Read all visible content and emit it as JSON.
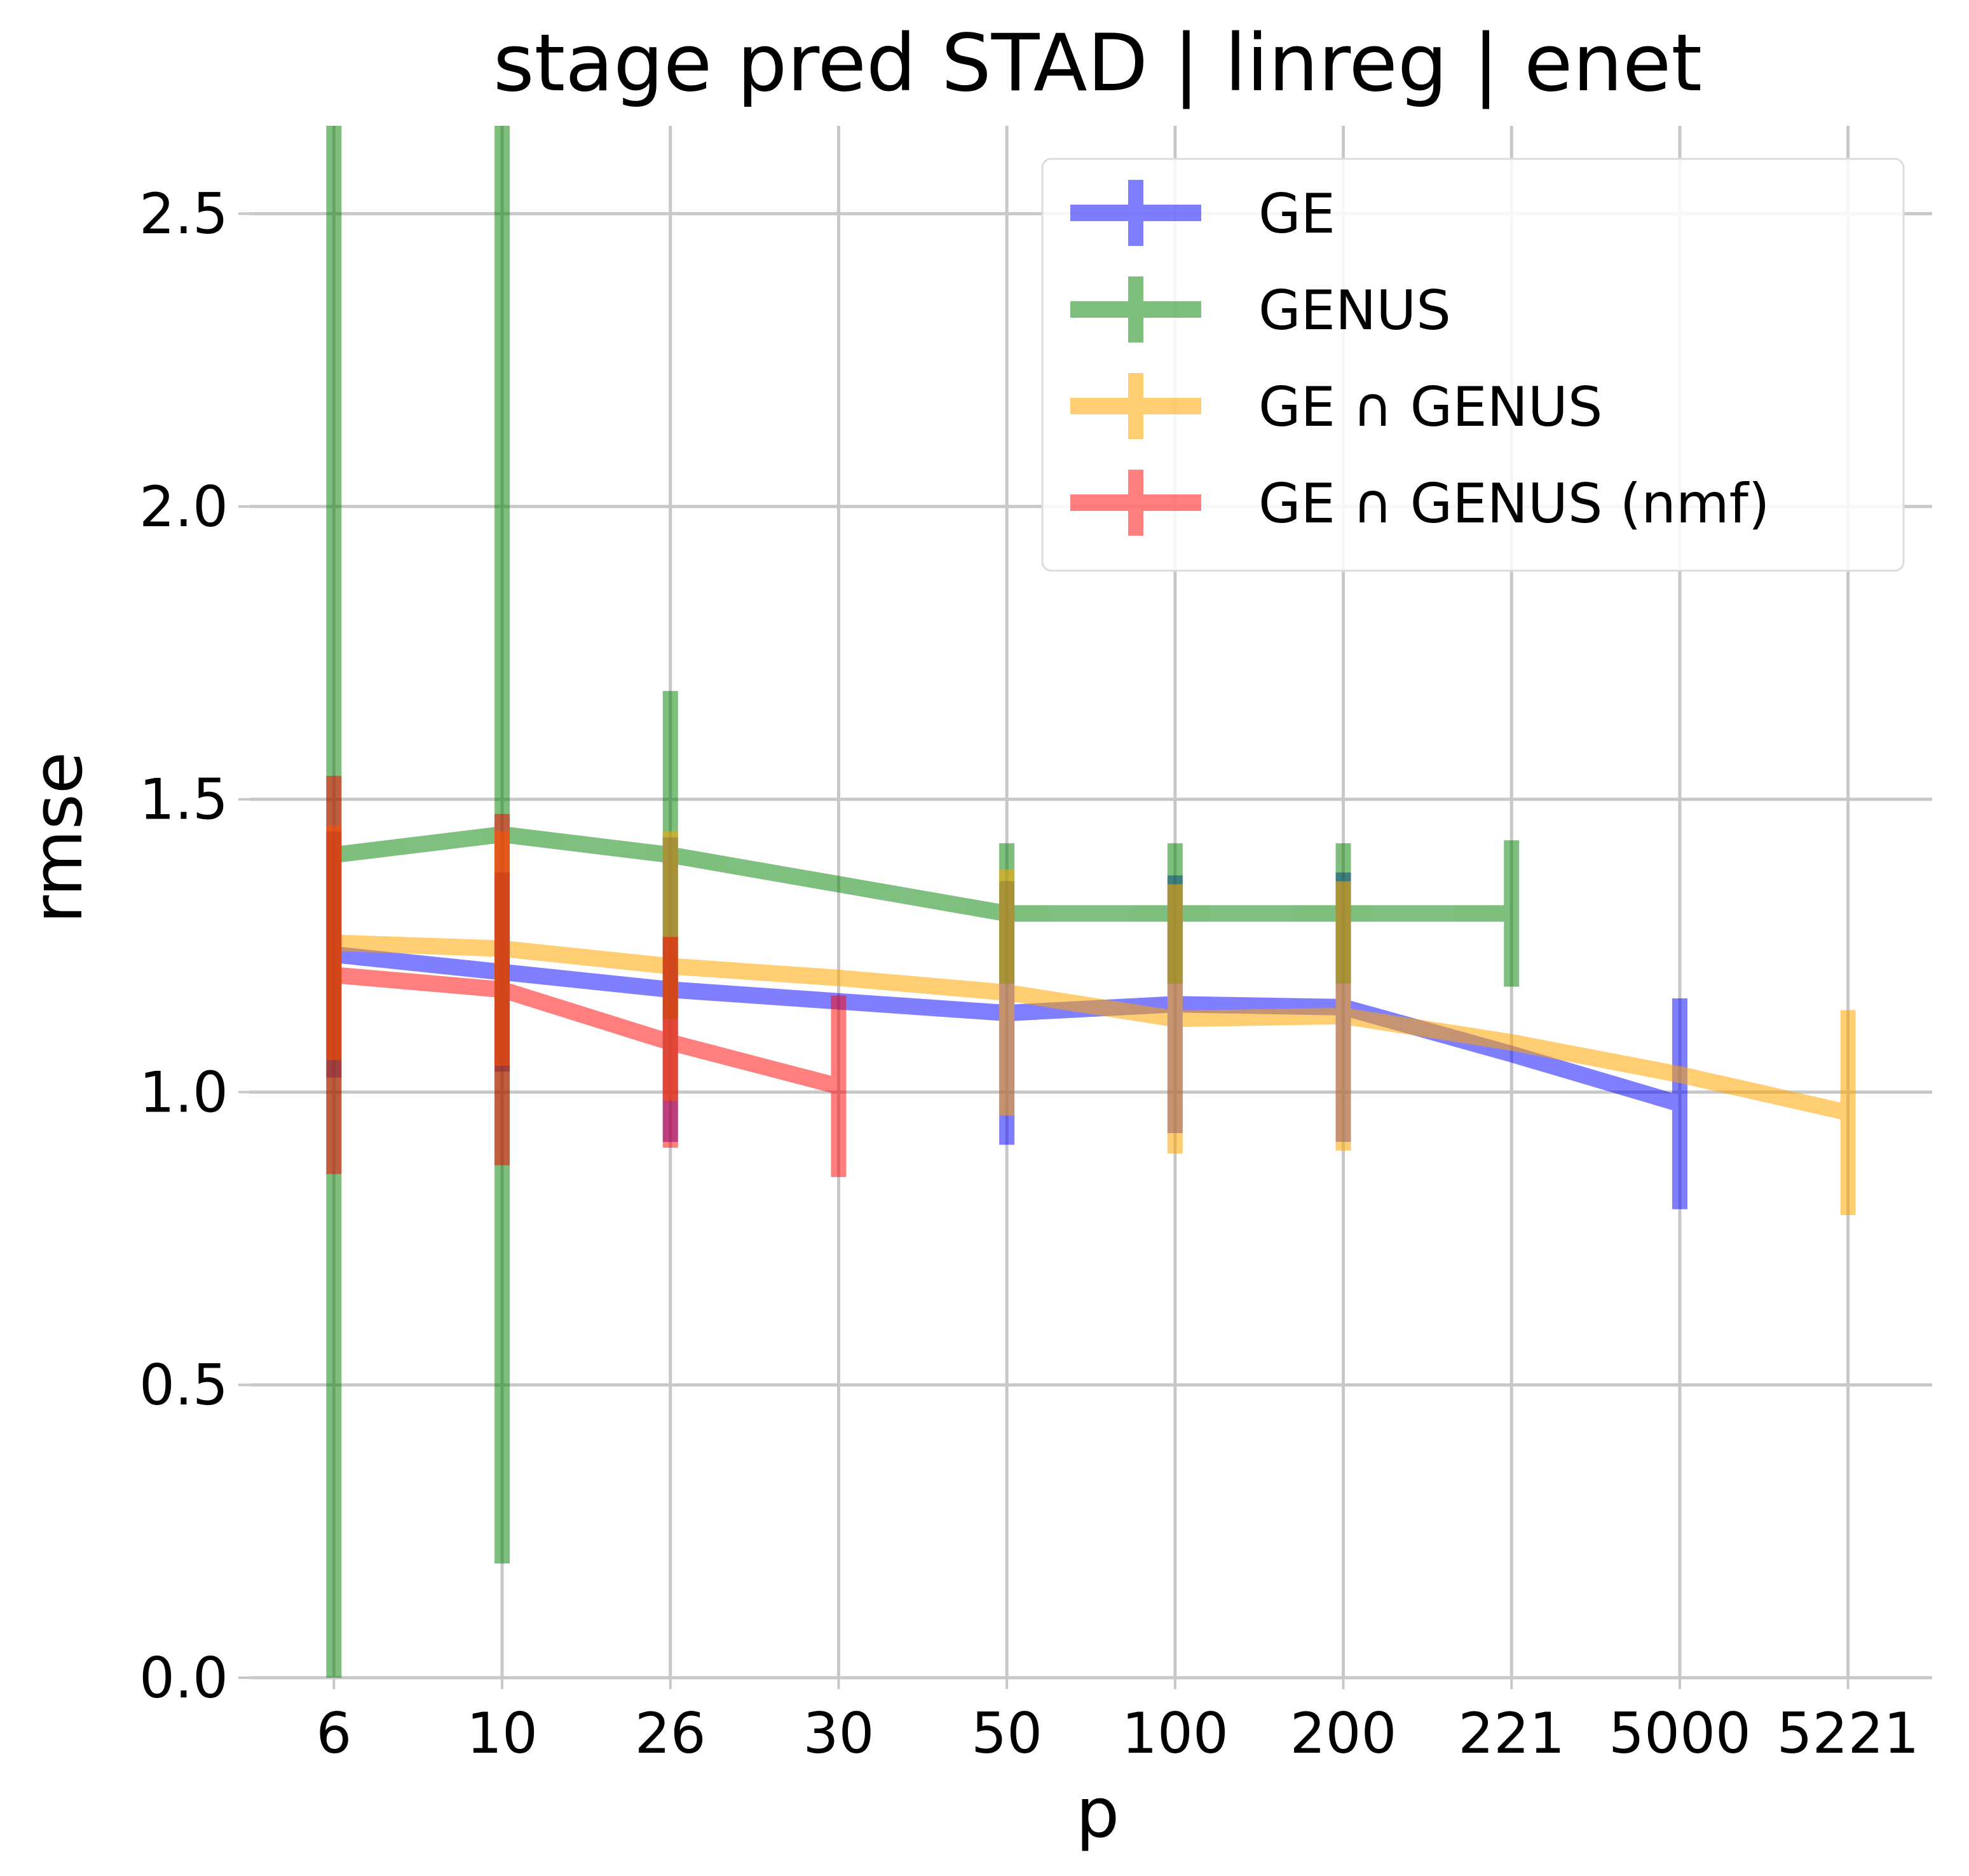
{
  "chart_data": {
    "type": "line",
    "title": "stage pred STAD | linreg | enet",
    "xlabel": "p",
    "ylabel": "rmse",
    "categories": [
      "6",
      "10",
      "26",
      "30",
      "50",
      "100",
      "200",
      "221",
      "5000",
      "5221"
    ],
    "ylim": [
      0,
      2.65
    ],
    "yticks": [
      "0.0",
      "0.5",
      "1.0",
      "1.5",
      "2.0",
      "2.5"
    ],
    "grid": true,
    "legend_position": "top-right",
    "series": [
      {
        "name": "GE",
        "color": "#0000ff",
        "points": [
          {
            "x": "6",
            "y": 1.235,
            "err": 0.21
          },
          {
            "x": "10",
            "y": 1.205,
            "err": 0.17
          },
          {
            "x": "26",
            "y": 1.175,
            "err": 0.26
          },
          {
            "x": "30",
            "y": 1.155,
            "err": null
          },
          {
            "x": "50",
            "y": 1.135,
            "err": 0.225
          },
          {
            "x": "100",
            "y": 1.15,
            "err": 0.22
          },
          {
            "x": "200",
            "y": 1.145,
            "err": 0.23
          },
          {
            "x": "221",
            "y": 1.065,
            "err": null
          },
          {
            "x": "5000",
            "y": 0.98,
            "err": 0.18
          }
        ]
      },
      {
        "name": "GENUS",
        "color": "#008000",
        "points": [
          {
            "x": "6",
            "y": 1.405,
            "err": 1.43
          },
          {
            "x": "10",
            "y": 1.44,
            "err": 1.245
          },
          {
            "x": "26",
            "y": 1.405,
            "err": 0.28
          },
          {
            "x": "30",
            "y": 1.355,
            "err": null
          },
          {
            "x": "50",
            "y": 1.305,
            "err": 0.12
          },
          {
            "x": "100",
            "y": 1.305,
            "err": 0.12
          },
          {
            "x": "200",
            "y": 1.305,
            "err": 0.12
          },
          {
            "x": "221",
            "y": 1.305,
            "err": 0.125
          }
        ]
      },
      {
        "name": "GE ∩ GENUS",
        "color": "#ffa500",
        "points": [
          {
            "x": "6",
            "y": 1.255,
            "err": 0.2
          },
          {
            "x": "10",
            "y": 1.245,
            "err": 0.2
          },
          {
            "x": "26",
            "y": 1.215,
            "err": 0.23
          },
          {
            "x": "30",
            "y": 1.195,
            "err": null
          },
          {
            "x": "50",
            "y": 1.17,
            "err": 0.21
          },
          {
            "x": "100",
            "y": 1.125,
            "err": 0.23
          },
          {
            "x": "200",
            "y": 1.13,
            "err": 0.23
          },
          {
            "x": "221",
            "y": 1.085,
            "err": null
          },
          {
            "x": "5000",
            "y": 1.03,
            "err": null
          },
          {
            "x": "5221",
            "y": 0.965,
            "err": 0.175
          }
        ]
      },
      {
        "name": "GE ∩ GENUS (nmf)",
        "color": "#ff0000",
        "points": [
          {
            "x": "6",
            "y": 1.2,
            "err": 0.34
          },
          {
            "x": "10",
            "y": 1.175,
            "err": 0.3
          },
          {
            "x": "26",
            "y": 1.085,
            "err": 0.18
          },
          {
            "x": "30",
            "y": 1.01,
            "err": 0.155
          }
        ]
      }
    ]
  }
}
